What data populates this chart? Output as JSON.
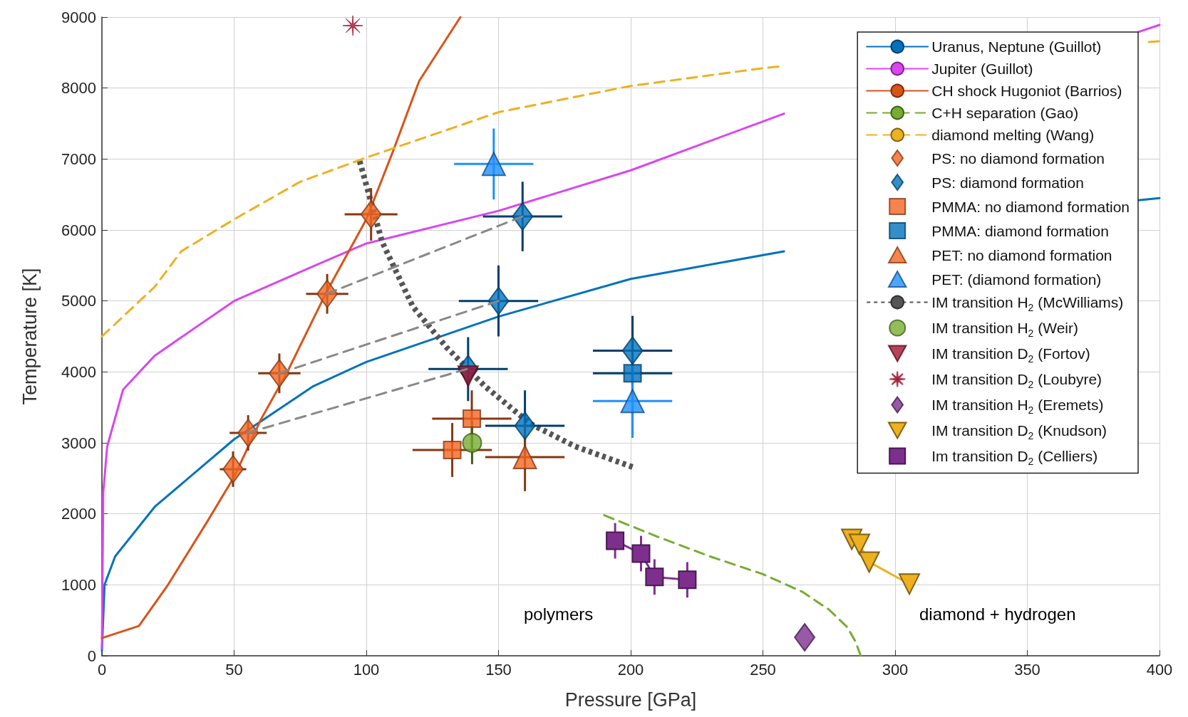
{
  "chart_data": {
    "type": "line",
    "xlabel": "Pressure [GPa]",
    "ylabel": "Temperature [K]",
    "xlim": [
      0,
      400
    ],
    "xticks": [
      0,
      50,
      100,
      150,
      200,
      250,
      300,
      350,
      400
    ],
    "ylim": [
      0,
      9000
    ],
    "yticks": [
      0,
      1000,
      2000,
      3000,
      4000,
      5000,
      6000,
      7000,
      8000,
      9000
    ],
    "grid": true,
    "legend": "top right",
    "annotations": [
      "polymers",
      "diamond + hydrogen"
    ],
    "series": [
      {
        "name": "Uranus, Neptune (Guillot)",
        "color": "#0072bd",
        "line_style": "solid",
        "marker": "none",
        "x": [
          0,
          1,
          5,
          20,
          50,
          80,
          100,
          150,
          200,
          258,
          330,
          392,
          400
        ],
        "values": [
          70,
          1000,
          1400,
          2100,
          3050,
          3800,
          4140,
          4780,
          5310,
          5700,
          null,
          6420,
          6450
        ]
      },
      {
        "name": "Jupiter (Guillot)",
        "color": "#d946ef",
        "line_style": "solid",
        "marker": "none",
        "x": [
          0,
          0.5,
          2,
          8,
          20,
          50,
          80,
          100,
          150,
          200,
          258,
          330,
          392,
          400
        ],
        "values": [
          100,
          2300,
          2950,
          3750,
          4230,
          5000,
          5490,
          5810,
          6270,
          6840,
          7640,
          null,
          8790,
          8890
        ]
      },
      {
        "name": "CH shock Hugoniot (Barrios)",
        "type": "line",
        "color": "#d95319",
        "line_style": "solid",
        "marker": "none",
        "x": [
          0,
          14,
          25,
          40,
          50,
          60,
          70,
          85,
          100,
          110,
          120,
          135.6
        ],
        "values": [
          250,
          420,
          1000,
          1900,
          2520,
          3320,
          3990,
          5130,
          6150,
          7100,
          8100,
          9000
        ]
      },
      {
        "name": "C+H separation (Gao)",
        "type": "line",
        "color": "#77ac30",
        "line_style": "dashed",
        "marker": "none",
        "x": [
          190,
          210,
          230,
          250,
          265,
          275,
          282,
          285,
          287
        ],
        "values": [
          1980,
          1680,
          1400,
          1150,
          900,
          650,
          400,
          200,
          0
        ]
      },
      {
        "name": "diamond melting (Wang)",
        "type": "line",
        "color": "#edb120",
        "line_style": "dashed",
        "marker": "none",
        "x": [
          0,
          20,
          30,
          50,
          75,
          100,
          150,
          200,
          250,
          258,
          330,
          396,
          400
        ],
        "values": [
          4500,
          5200,
          5700,
          6150,
          6680,
          7020,
          7660,
          8030,
          8280,
          8310,
          null,
          8650,
          8660
        ]
      },
      {
        "type": "line",
        "color": "#888888",
        "line_style": "dashed",
        "marker": "none",
        "x": [
          85,
          159
        ],
        "values": [
          5100,
          6190
        ]
      },
      {
        "type": "line",
        "color": "#888888",
        "line_style": "dashed",
        "marker": "none",
        "x": [
          67,
          150
        ],
        "values": [
          3980,
          5000
        ]
      },
      {
        "type": "line",
        "color": "#888888",
        "line_style": "dashed",
        "marker": "none",
        "x": [
          55,
          138
        ],
        "values": [
          3140,
          4040
        ]
      },
      {
        "name": "PS: no diamond formation",
        "type": "scatter",
        "color": "#f26522",
        "marker": "diamond",
        "x": [
          49.6,
          55.3,
          67.1,
          85.2,
          101.8
        ],
        "values": [
          2630,
          3140,
          3980,
          5100,
          6220
        ],
        "xerrors": [
          5,
          7,
          8,
          8,
          10
        ],
        "errors": [
          250,
          250,
          280,
          280,
          370
        ]
      },
      {
        "name": "PS: diamond formation",
        "type": "scatter",
        "color": "#0072bd",
        "marker": "diamond",
        "x": [
          159.1,
          150,
          138.5,
          160,
          200.7
        ],
        "values": [
          6190,
          5000,
          4040,
          3240,
          4300
        ],
        "xerrors": [
          15,
          15,
          15,
          15,
          15
        ],
        "errors": [
          490,
          500,
          450,
          500,
          490
        ]
      },
      {
        "name": "PMMA: no diamond formation",
        "type": "scatter",
        "color": "#f26522",
        "marker": "square",
        "x": [
          132.5,
          139.9
        ],
        "values": [
          2900,
          3340
        ],
        "xerrors": [
          15,
          15
        ],
        "errors": [
          380,
          400
        ]
      },
      {
        "name": "PMMA: diamond formation",
        "type": "scatter",
        "color": "#0072bd",
        "marker": "square",
        "x": [
          200.7
        ],
        "values": [
          3980
        ],
        "xerrors": [
          15
        ],
        "errors": [
          null
        ]
      },
      {
        "name": "PET: no diamond formation",
        "type": "scatter",
        "color": "#f26522",
        "marker": "triangle",
        "x": [
          160
        ],
        "values": [
          2800
        ],
        "xerrors": [
          15
        ],
        "errors": [
          480
        ]
      },
      {
        "name": "PET: (diamond formation)",
        "type": "scatter",
        "color": "#1e90ff",
        "marker": "triangle",
        "x": [
          148.2,
          200.7
        ],
        "values": [
          6930,
          3590
        ],
        "xerrors": [
          15,
          15
        ],
        "errors": [
          500,
          520
        ]
      },
      {
        "name": "IM transition H$_{2}$ (McWilliams)",
        "type": "line",
        "color": "#555555",
        "line_style": "dotted",
        "marker": "none",
        "x": [
          97.5,
          106,
          117.6,
          130.5,
          144.8,
          162,
          179,
          200.7
        ],
        "values": [
          6970,
          5830,
          4920,
          4340,
          3800,
          3270,
          2950,
          2660
        ]
      },
      {
        "name": "IM transition H$_{2}$ (Weir)",
        "type": "scatter",
        "color": "#77ac30",
        "marker": "circle",
        "x": [
          140
        ],
        "values": [
          3000
        ],
        "errors": [
          300
        ]
      },
      {
        "name": "IM transition D$_{2}$ (Fortov)",
        "type": "scatter",
        "color": "#a2142f",
        "marker": "triangle-down",
        "x": [
          138.5
        ],
        "values": [
          3940
        ]
      },
      {
        "name": "IM transition D$_{2}$ (Loubyre)",
        "type": "scatter",
        "color": "#a2142f",
        "marker": "cross",
        "x": [
          94.9
        ],
        "values": [
          8880
        ]
      },
      {
        "name": "IM transition H$_{2}$ (Eremets)",
        "type": "scatter",
        "color": "#7e2f8e",
        "marker": "diamond",
        "x": [
          265.8
        ],
        "values": [
          260
        ]
      },
      {
        "name": "IM transition D$_{2}$ (Knudson)",
        "type": "line",
        "color": "#edb120",
        "line_style": "solid",
        "marker": "triangle-down",
        "x": [
          283.6,
          286.5,
          290.2,
          305.4
        ],
        "values": [
          1640,
          1570,
          1320,
          1010
        ]
      },
      {
        "name": "Im transition D$_{2}$ (Celliers)",
        "type": "line",
        "color": "#7e2f8e",
        "line_style": "solid",
        "marker": "square",
        "x": [
          194.1,
          203.9,
          209,
          221.4
        ],
        "values": [
          1620,
          1440,
          1110,
          1070
        ],
        "errors": [
          250,
          250,
          250,
          250
        ]
      }
    ]
  }
}
